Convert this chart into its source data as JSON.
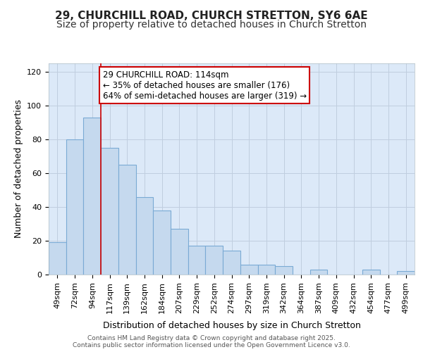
{
  "title_line1": "29, CHURCHILL ROAD, CHURCH STRETTON, SY6 6AE",
  "title_line2": "Size of property relative to detached houses in Church Stretton",
  "xlabel": "Distribution of detached houses by size in Church Stretton",
  "ylabel": "Number of detached properties",
  "bar_labels": [
    "49sqm",
    "72sqm",
    "94sqm",
    "117sqm",
    "139sqm",
    "162sqm",
    "184sqm",
    "207sqm",
    "229sqm",
    "252sqm",
    "274sqm",
    "297sqm",
    "319sqm",
    "342sqm",
    "364sqm",
    "387sqm",
    "409sqm",
    "432sqm",
    "454sqm",
    "477sqm",
    "499sqm"
  ],
  "bar_values": [
    19,
    80,
    93,
    75,
    65,
    46,
    38,
    27,
    17,
    17,
    14,
    6,
    6,
    5,
    0,
    3,
    0,
    0,
    3,
    0,
    2
  ],
  "bar_color": "#c5d9ee",
  "bar_edge_color": "#7aaad4",
  "vline_x": 3,
  "annotation_text": "29 CHURCHILL ROAD: 114sqm\n← 35% of detached houses are smaller (176)\n64% of semi-detached houses are larger (319) →",
  "annotation_box_facecolor": "#ffffff",
  "annotation_box_edgecolor": "#cc0000",
  "vline_color": "#cc0000",
  "footer_text": "Contains HM Land Registry data © Crown copyright and database right 2025.\nContains public sector information licensed under the Open Government Licence v3.0.",
  "ylim": [
    0,
    125
  ],
  "yticks": [
    0,
    20,
    40,
    60,
    80,
    100,
    120
  ],
  "plot_bg_color": "#dce9f8",
  "fig_bg_color": "#ffffff",
  "grid_color": "#c0cedf",
  "title_fontsize": 11,
  "subtitle_fontsize": 10,
  "ylabel_fontsize": 9,
  "xlabel_fontsize": 9,
  "tick_fontsize": 8,
  "annotation_fontsize": 8.5,
  "footer_fontsize": 6.5
}
